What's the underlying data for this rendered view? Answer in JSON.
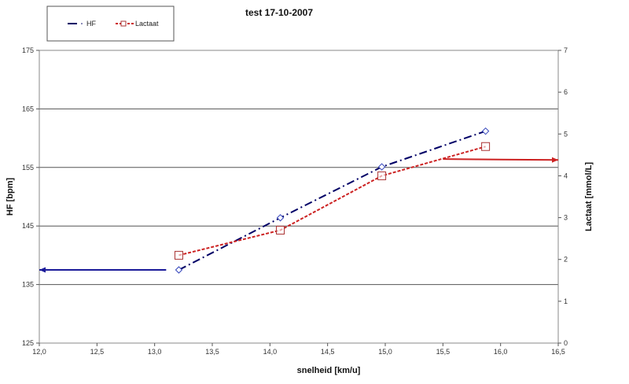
{
  "chart_data": {
    "type": "line",
    "title": "test 17-10-2007",
    "xlabel": "snelheid [km/u]",
    "ylabel": "HF [bpm]",
    "y2label": "Lactaat [mmol/L]",
    "xlim": [
      12.0,
      16.5
    ],
    "ylim": [
      125,
      175
    ],
    "y2lim": [
      0,
      7
    ],
    "x_ticks": [
      "12,0",
      "12,5",
      "13,0",
      "13,5",
      "14,0",
      "14,5",
      "15,0",
      "15,5",
      "16,0",
      "16,5"
    ],
    "x_tick_values": [
      12.0,
      12.5,
      13.0,
      13.5,
      14.0,
      14.5,
      15.0,
      15.5,
      16.0,
      16.5
    ],
    "y_ticks": [
      "125",
      "135",
      "145",
      "155",
      "165",
      "175"
    ],
    "y_tick_values": [
      125,
      135,
      145,
      155,
      165,
      175
    ],
    "y2_ticks": [
      "0",
      "1",
      "2",
      "3",
      "4",
      "5",
      "6",
      "7"
    ],
    "y2_tick_values": [
      0,
      1,
      2,
      3,
      4,
      5,
      6,
      7
    ],
    "grid": "horizontal",
    "legend_position": "top-left",
    "series": [
      {
        "name": "HF",
        "axis": "left",
        "color": "#000066",
        "marker": "diamond",
        "x": [
          13.21,
          14.09,
          14.97,
          15.87
        ],
        "values": [
          137.5,
          146.4,
          155.1,
          161.2
        ]
      },
      {
        "name": "Lactaat",
        "axis": "right",
        "color": "#cc2222",
        "marker": "square",
        "x": [
          13.21,
          14.09,
          14.97,
          15.87
        ],
        "values": [
          2.1,
          2.7,
          4.0,
          4.7
        ]
      }
    ],
    "annotations": [
      {
        "type": "arrow",
        "axis": "left",
        "color": "#1a1a99",
        "from": [
          13.1,
          137.5
        ],
        "to": [
          12.0,
          137.5
        ]
      },
      {
        "type": "arrow",
        "axis": "right",
        "color": "#cc2222",
        "from": [
          15.5,
          4.4
        ],
        "to": [
          16.5,
          4.38
        ]
      }
    ]
  }
}
